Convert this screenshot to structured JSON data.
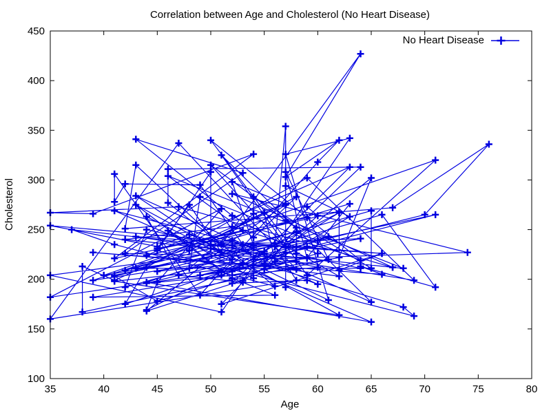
{
  "chart_data": {
    "type": "line",
    "title": "Correlation between Age and Cholesterol (No Heart Disease)",
    "xlabel": "Age",
    "ylabel": "Cholesterol",
    "xlim": [
      35,
      80
    ],
    "ylim": [
      100,
      450
    ],
    "xticks": [
      35,
      40,
      45,
      50,
      55,
      60,
      65,
      70,
      75,
      80
    ],
    "yticks": [
      100,
      150,
      200,
      250,
      300,
      350,
      400,
      450
    ],
    "legend_position": "top-right",
    "grid": false,
    "series": [
      {
        "name": "No Heart Disease",
        "color": "#0000e0",
        "marker": "plus",
        "x": [
          41,
          56,
          57,
          57,
          57,
          63,
          53,
          44,
          52,
          57,
          54,
          48,
          49,
          64,
          50,
          58,
          58,
          60,
          50,
          58,
          66,
          43,
          69,
          59,
          44,
          42,
          61,
          40,
          71,
          59,
          51,
          65,
          53,
          41,
          65,
          44,
          54,
          51,
          46,
          54,
          54,
          65,
          65,
          51,
          48,
          45,
          53,
          39,
          52,
          44,
          47,
          53,
          51,
          66,
          62,
          62,
          44,
          63,
          52,
          59,
          60,
          52,
          48,
          45,
          34,
          57,
          71,
          49,
          54,
          59,
          57,
          61,
          39,
          56,
          52,
          43,
          62,
          41,
          58,
          35,
          51,
          45,
          44,
          62,
          54,
          51,
          29,
          51,
          43,
          55,
          51,
          59,
          52,
          58,
          41,
          45,
          60,
          52,
          42,
          67,
          68,
          46,
          54,
          58,
          48,
          57,
          52,
          54,
          45,
          53,
          62,
          52,
          43,
          53,
          42,
          59,
          63,
          42,
          50,
          68,
          69,
          45,
          50,
          50,
          64,
          57,
          64,
          43,
          55,
          37,
          41,
          56,
          46,
          46,
          64,
          59,
          41,
          54,
          39,
          34,
          47,
          67,
          52,
          74,
          54,
          49,
          42,
          41,
          41,
          49,
          60,
          62,
          57,
          64,
          51,
          43,
          42,
          67,
          76,
          70,
          44,
          60,
          44,
          42,
          66,
          71,
          64,
          66,
          39,
          58,
          47,
          35,
          58,
          56,
          56,
          55,
          41,
          38,
          38,
          62,
          65,
          57,
          50,
          57,
          58,
          55,
          61,
          57,
          63,
          55,
          60,
          59
        ],
        "y": [
          204,
          236,
          354,
          192,
          294,
          263,
          199,
          168,
          239,
          275,
          266,
          211,
          283,
          219,
          340,
          226,
          247,
          239,
          234,
          233,
          226,
          243,
          199,
          302,
          212,
          175,
          243,
          204,
          320,
          204,
          325,
          177,
          235,
          269,
          157,
          197,
          232,
          208,
          249,
          201,
          283,
          211,
          269,
          227,
          275,
          231,
          249,
          199,
          220,
          263,
          204,
          197,
          175,
          226,
          209,
          268,
          224,
          313,
          196,
          199,
          195,
          234,
          245,
          233,
          254,
          233,
          265,
          204,
          214,
          221,
          308,
          220,
          182,
          184,
          201,
          275,
          164,
          198,
          218,
          182,
          271,
          197,
          169,
          267,
          214,
          167,
          204,
          227,
          284,
          226,
          204,
          233,
          208,
          248,
          203,
          178,
          226,
          253,
          240,
          212,
          211,
          304,
          242,
          283,
          229,
          276,
          298,
          234,
          208,
          216,
          203,
          264,
          341,
          307,
          226,
          222,
          276,
          209,
          231,
          172,
          163,
          229,
          308,
          234,
          241,
          227,
          211,
          211,
          228,
          250,
          235,
          193,
          277,
          311,
          313,
          262,
          221,
          326,
          266,
          267,
          273,
          212,
          286,
          227,
          220,
          295,
          296,
          278,
          306,
          184,
          318,
          340,
          303,
          427,
          235,
          315,
          251,
          272,
          336,
          265,
          196,
          212,
          250,
          192,
          265,
          192,
          213,
          205,
          227,
          210,
          337,
          160,
          199,
          233,
          218,
          267,
          199,
          213,
          167,
          222,
          302,
          232,
          315,
          259,
          252,
          210,
          179,
          326,
          342,
          216,
          264,
          273
        ]
      }
    ]
  }
}
